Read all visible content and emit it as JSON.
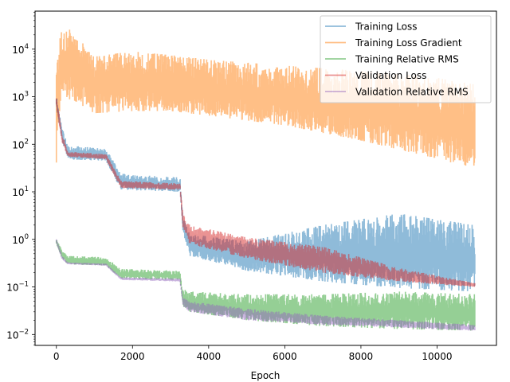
{
  "chart_data": {
    "type": "line",
    "title": "",
    "xlabel": "Epoch",
    "ylabel": "",
    "xscale": "linear",
    "yscale": "log",
    "xlim": [
      -560,
      11560
    ],
    "ylim": [
      0.0059,
      63000
    ],
    "x_ticks": [
      0,
      2000,
      4000,
      6000,
      8000,
      10000
    ],
    "x_tick_labels": [
      "0",
      "2000",
      "4000",
      "6000",
      "8000",
      "10000"
    ],
    "y_ticks": [
      0.01,
      0.1,
      1,
      10,
      100,
      1000,
      10000
    ],
    "y_tick_labels": [
      {
        "base": "10",
        "exp": "−2"
      },
      {
        "base": "10",
        "exp": "−1"
      },
      {
        "base": "10",
        "exp": "0"
      },
      {
        "base": "10",
        "exp": "1"
      },
      {
        "base": "10",
        "exp": "2"
      },
      {
        "base": "10",
        "exp": "3"
      },
      {
        "base": "10",
        "exp": "4"
      }
    ],
    "grid": false,
    "legend_position": "top-right",
    "epoch_range": [
      0,
      11000
    ],
    "series": [
      {
        "name": "Training Loss",
        "color": "#1f77b4",
        "alpha": 0.5,
        "x": [
          0,
          150,
          300,
          1300,
          1700,
          3250,
          3320,
          3500,
          5000,
          7000,
          9000,
          11000
        ],
        "lower": [
          600,
          120,
          48,
          45,
          11,
          10,
          1.5,
          0.45,
          0.22,
          0.13,
          0.095,
          0.08
        ],
        "upper": [
          1050,
          220,
          95,
          80,
          24,
          20,
          3.0,
          1.3,
          0.9,
          2.0,
          3.5,
          2.0
        ],
        "peak_spikes": [
          0.7,
          3.5,
          4.8
        ]
      },
      {
        "name": "Training Loss Gradient",
        "color": "#ff7f0e",
        "alpha": 0.5,
        "x": [
          0,
          100,
          400,
          1000,
          2000,
          3000,
          4000,
          6000,
          8000,
          10000,
          11000
        ],
        "lower": [
          40,
          800,
          900,
          450,
          500,
          500,
          400,
          250,
          120,
          50,
          30
        ],
        "upper": [
          3000,
          30000,
          25000,
          7000,
          9000,
          7500,
          6000,
          4500,
          3500,
          2500,
          1800
        ]
      },
      {
        "name": "Training Relative RMS",
        "color": "#2ca02c",
        "alpha": 0.5,
        "x": [
          0,
          150,
          300,
          1300,
          1700,
          3250,
          3320,
          3500,
          5000,
          7000,
          9000,
          11000
        ],
        "lower": [
          0.8,
          0.4,
          0.3,
          0.28,
          0.15,
          0.14,
          0.04,
          0.03,
          0.02,
          0.015,
          0.013,
          0.012
        ],
        "upper": [
          1.05,
          0.6,
          0.45,
          0.42,
          0.24,
          0.22,
          0.09,
          0.08,
          0.07,
          0.07,
          0.08,
          0.07
        ]
      },
      {
        "name": "Validation Loss",
        "color": "#d62728",
        "alpha": 0.5,
        "x": [
          0,
          150,
          300,
          1300,
          1700,
          3250,
          3320,
          3500,
          5000,
          7000,
          9000,
          11000
        ],
        "lower": [
          650,
          110,
          55,
          48,
          12,
          11,
          1.8,
          0.8,
          0.4,
          0.2,
          0.13,
          0.1
        ],
        "upper": [
          1000,
          170,
          70,
          62,
          17,
          15,
          3.5,
          2.0,
          1.1,
          0.7,
          0.25,
          0.12
        ]
      },
      {
        "name": "Validation Relative RMS",
        "color": "#9467bd",
        "alpha": 0.5,
        "x": [
          0,
          150,
          300,
          1300,
          1700,
          3250,
          3320,
          3500,
          5000,
          7000,
          9000,
          11000
        ],
        "lower": [
          0.85,
          0.38,
          0.3,
          0.28,
          0.14,
          0.13,
          0.04,
          0.03,
          0.02,
          0.016,
          0.014,
          0.012
        ],
        "upper": [
          1.0,
          0.45,
          0.33,
          0.31,
          0.16,
          0.15,
          0.06,
          0.05,
          0.035,
          0.025,
          0.02,
          0.016
        ]
      }
    ]
  }
}
